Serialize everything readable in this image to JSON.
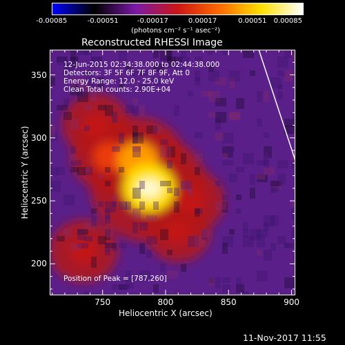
{
  "colorbar": {
    "tick_labels": [
      "-0.00085",
      "-0.00051",
      "-0.00017",
      "0.00017",
      "0.00051",
      "0.00085"
    ],
    "units": "(photons cm⁻² s⁻¹ asec⁻²)",
    "colors": [
      "#0000ff",
      "#000000",
      "#7a1aa8",
      "#cc1515",
      "#ff6a00",
      "#ffe000",
      "#ffffff"
    ]
  },
  "plot": {
    "title": "Reconstructed RHESSI Image",
    "info": {
      "time": "12-Jun-2015 02:34:38.000 to 02:44:38.000",
      "detectors": "Detectors: 3F 5F 6F 7F 8F 9F, Att 0",
      "energy": "Energy Range: 12.0 - 25.0 keV",
      "method": "Clean     Total counts: 2.90E+04"
    },
    "peak": "Position of Peak = [787,260]"
  },
  "footer": {
    "timestamp": "11-Nov-2017 11:55"
  },
  "chart_data": {
    "type": "heatmap",
    "title": "Reconstructed RHESSI Image",
    "xlabel": "Heliocentric X (arcsec)",
    "ylabel": "Heliocentric Y (arcsec)",
    "xlim": [
      708,
      903
    ],
    "ylim": [
      175,
      370
    ],
    "xticks": [
      750,
      800,
      850,
      900
    ],
    "yticks": [
      200,
      250,
      300,
      350
    ],
    "colorbar_range": [
      -0.00085,
      0.00085
    ],
    "peak_position": [
      787,
      260
    ],
    "sources": [
      {
        "x": 787,
        "y": 260,
        "intensity": 1.0
      },
      {
        "x": 778,
        "y": 282,
        "intensity": 0.7
      },
      {
        "x": 755,
        "y": 285,
        "intensity": 0.45
      },
      {
        "x": 745,
        "y": 310,
        "intensity": 0.35
      },
      {
        "x": 735,
        "y": 210,
        "intensity": 0.35
      },
      {
        "x": 820,
        "y": 250,
        "intensity": 0.35
      },
      {
        "x": 810,
        "y": 225,
        "intensity": 0.3
      }
    ],
    "limb": [
      [
        874,
        370
      ],
      [
        903,
        282
      ]
    ]
  }
}
